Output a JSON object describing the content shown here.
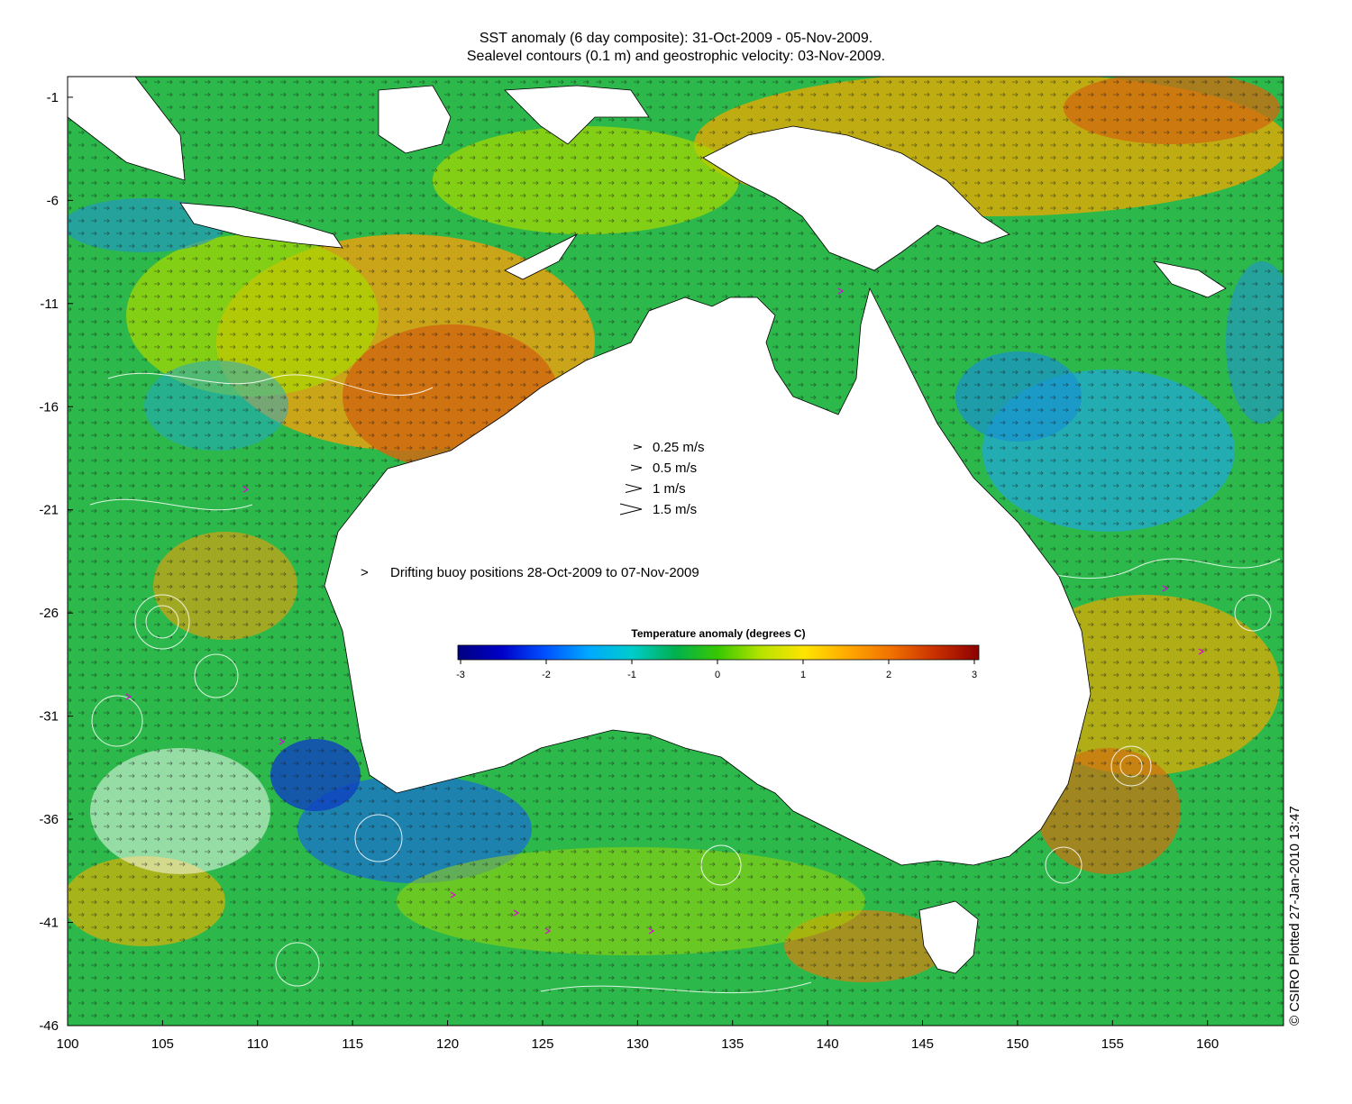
{
  "title": {
    "line1": "SST anomaly (6 day composite): 31-Oct-2009 - 05-Nov-2009.",
    "line2": "Sealevel contours (0.1 m) and geostrophic velocity: 03-Nov-2009."
  },
  "axes": {
    "x_ticks": [
      "100",
      "105",
      "110",
      "115",
      "120",
      "125",
      "130",
      "135",
      "140",
      "145",
      "150",
      "155",
      "160"
    ],
    "y_ticks": [
      "-1",
      "-6",
      "-11",
      "-16",
      "-21",
      "-26",
      "-31",
      "-36",
      "-41",
      "-46"
    ],
    "x_range": [
      100,
      164
    ],
    "y_range": [
      -46,
      0
    ]
  },
  "velocity_legend": [
    {
      "label": "0.25 m/s",
      "speed": 0.25
    },
    {
      "label": "0.5 m/s",
      "speed": 0.5
    },
    {
      "label": "1 m/s",
      "speed": 1
    },
    {
      "label": "1.5 m/s",
      "speed": 1.5
    }
  ],
  "buoy_legend": {
    "marker": ">",
    "label": "Drifting buoy positions 28-Oct-2009 to 07-Nov-2009",
    "color": "#e000e0"
  },
  "colorbar": {
    "title": "Temperature anomaly (degrees C)",
    "ticks": [
      "-3",
      "-2",
      "-1",
      "0",
      "1",
      "2",
      "3"
    ],
    "range": [
      -3,
      3
    ],
    "colors": [
      "#00007f",
      "#0000c8",
      "#0050ff",
      "#00a8ff",
      "#00cccc",
      "#00b050",
      "#38c800",
      "#b8e400",
      "#ffe400",
      "#ffa800",
      "#f07000",
      "#c83000",
      "#8c0000"
    ]
  },
  "credit": "© CSIRO Plotted 27-Jan-2010 13:47",
  "colors": {
    "ocean_green": "#2cb84a",
    "land": "#ffffff",
    "warm": "#e08a10",
    "cool": "#2a9cd8",
    "contour": "#ffffff"
  }
}
